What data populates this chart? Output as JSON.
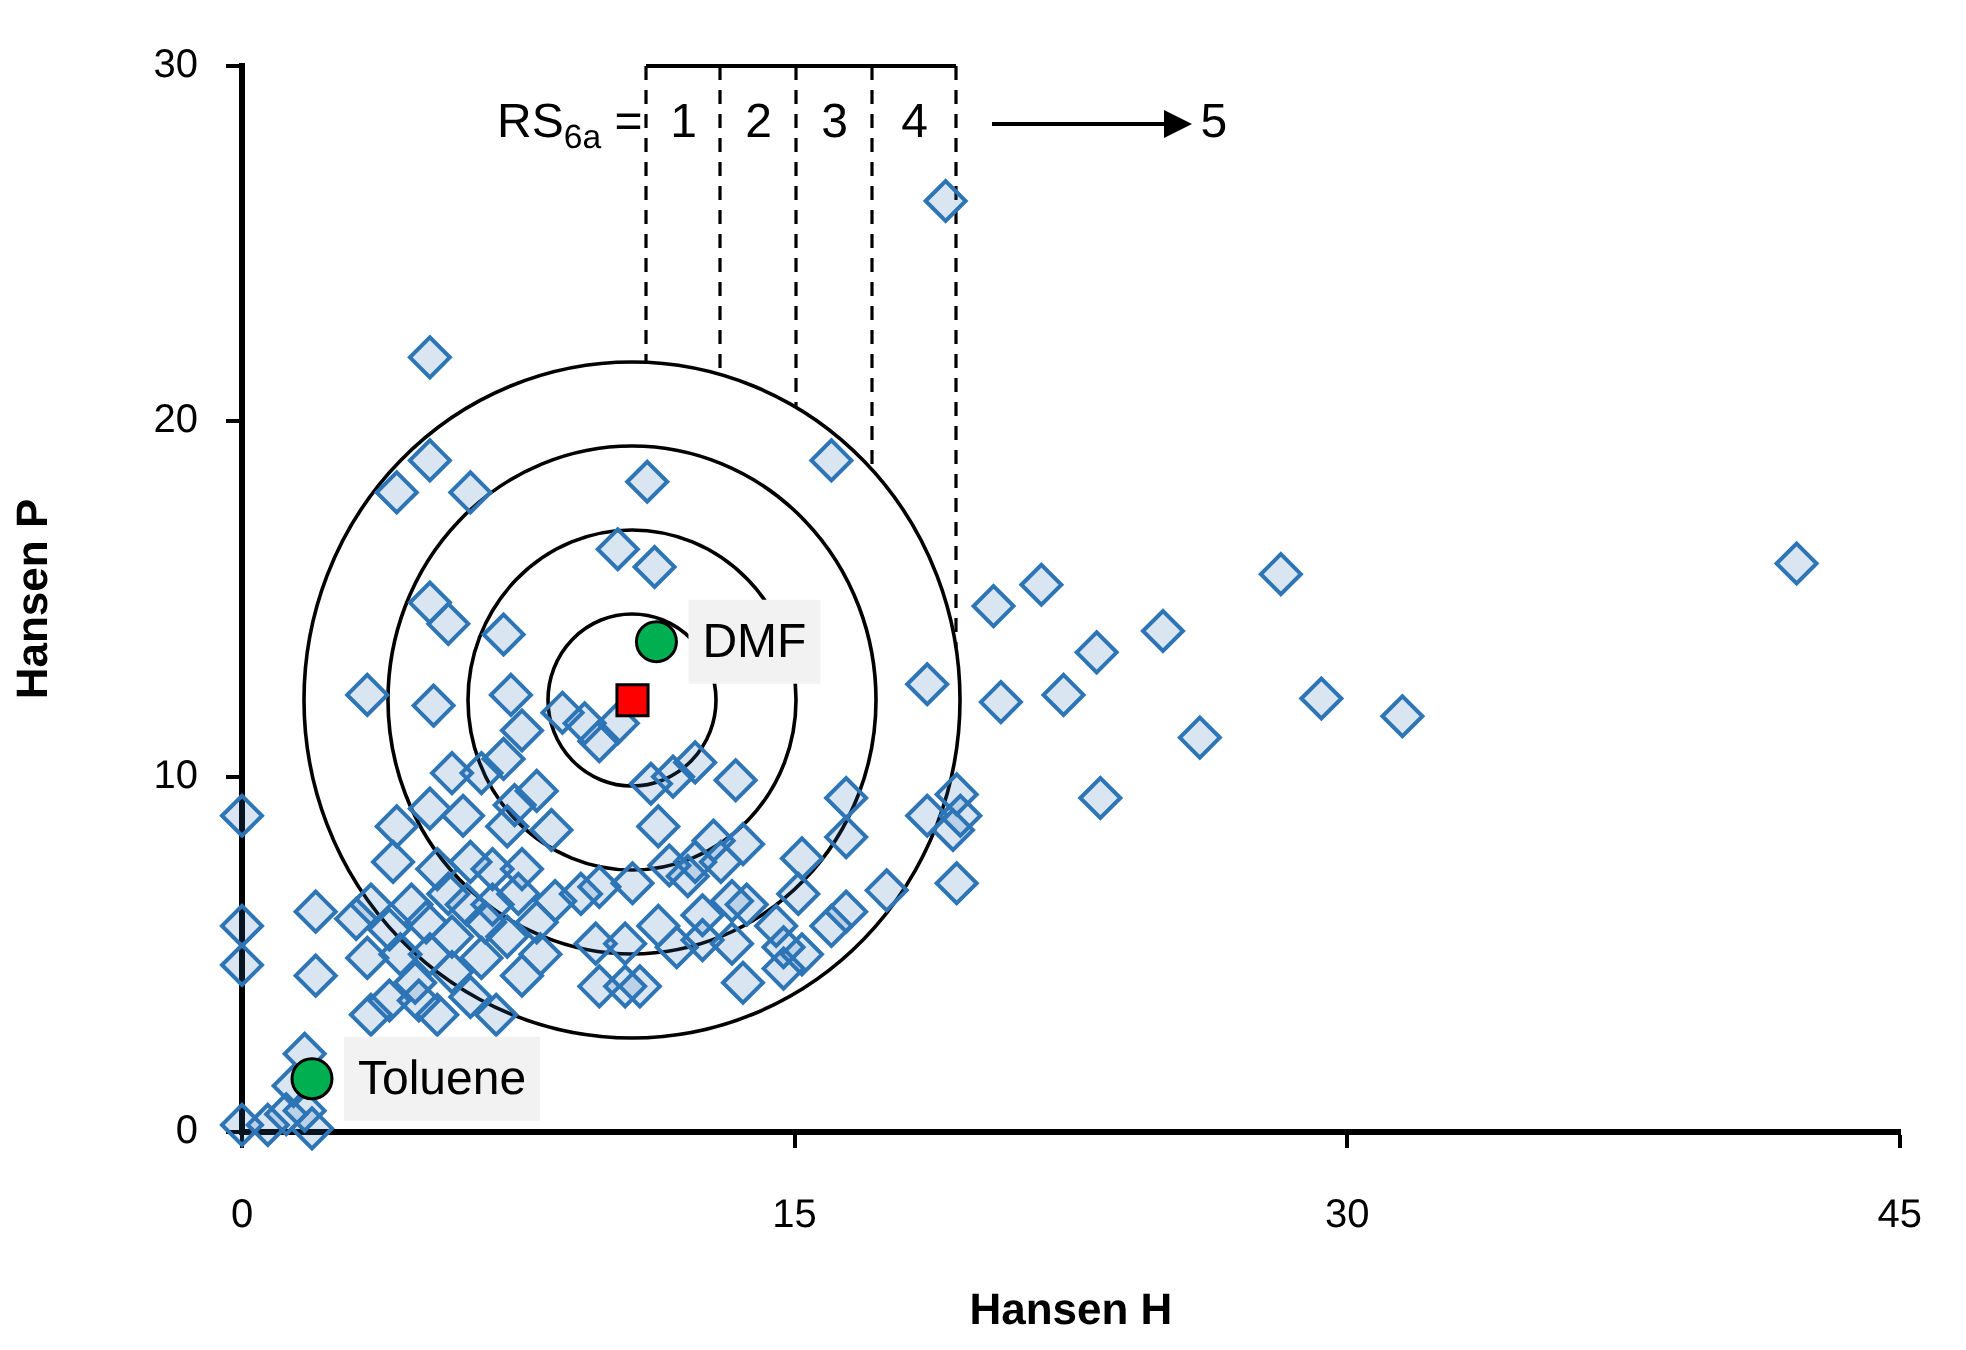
{
  "chart_data": {
    "type": "scatter",
    "xlabel": "Hansen H",
    "ylabel": "Hansen P",
    "xlim": [
      0,
      45
    ],
    "ylim": [
      0,
      30
    ],
    "xticks": [
      0,
      15,
      30,
      45
    ],
    "yticks": [
      0,
      10,
      20,
      30
    ],
    "legend": false,
    "series": [
      {
        "marker": "diamond",
        "color": "#2e75b6",
        "x": [
          20.4,
          21.7,
          23.2,
          25.0,
          20.6,
          22.3,
          28.2,
          29.3,
          31.5,
          42.2,
          26.0,
          23.3,
          19.4,
          19.5,
          19.3,
          19.4,
          19.1,
          18.6,
          9.3,
          9.7,
          10.2,
          11.1,
          11.7,
          12.3,
          13.4,
          11.3,
          12.8,
          13.6,
          11.6,
          12.3,
          13.0,
          12.1,
          16.4,
          16.4,
          15.2,
          15.1,
          17.5,
          18.6,
          9.7,
          10.6,
          9.2,
          11.3,
          12.5,
          13.3,
          13.7,
          14.5,
          9.6,
          10.4,
          11.8,
          12.5,
          13.3,
          14.7,
          16.0,
          16.4,
          9.7,
          10.4,
          10.8,
          13.6,
          14.7,
          15.2,
          11.0,
          16.0,
          10.2,
          11.2,
          5.1,
          5.1,
          4.2,
          6.2,
          5.1,
          5.6,
          7.1,
          3.4,
          5.2,
          7.3,
          7.6,
          8.7,
          5.7,
          6.5,
          7.1,
          8.0,
          5.1,
          6.0,
          4.2,
          7.2,
          8.4,
          0,
          0,
          0,
          2.0,
          2.0,
          1.7,
          0,
          0.7,
          1.2,
          1.9,
          1.4,
          7.4,
          4.1,
          5.3,
          6.2,
          6.8,
          7.6,
          3.5,
          4.6,
          5.6,
          6.1,
          6.8,
          7.5,
          8.5,
          3.1,
          4.0,
          5.0,
          5.7,
          6.6,
          7.2,
          8.0,
          3.4,
          4.3,
          5.1,
          5.7,
          6.5,
          7.6,
          8.1,
          4.7,
          4.0,
          4.8,
          6.2,
          5.3,
          6.9,
          3.5,
          1.7
        ],
        "values": [
          14.8,
          15.4,
          13.5,
          14.1,
          12.1,
          12.3,
          15.7,
          12.2,
          11.7,
          16.0,
          11.1,
          9.4,
          9.5,
          8.9,
          8.5,
          7.0,
          26.2,
          12.6,
          11.5,
          11.0,
          11.5,
          9.8,
          10.0,
          10.4,
          9.9,
          8.6,
          8.2,
          8.1,
          7.5,
          7.6,
          7.6,
          7.2,
          9.4,
          8.3,
          7.7,
          6.7,
          6.8,
          8.9,
          6.9,
          7.0,
          6.7,
          5.8,
          6.1,
          6.5,
          6.4,
          5.8,
          5.3,
          5.3,
          5.2,
          5.4,
          5.3,
          5.2,
          5.8,
          6.2,
          4.1,
          4.1,
          4.1,
          4.2,
          4.6,
          5.0,
          18.3,
          18.9,
          16.4,
          15.9,
          21.8,
          18.9,
          18.0,
          18.0,
          14.9,
          14.3,
          14.0,
          12.3,
          12.0,
          12.3,
          11.3,
          11.8,
          10.1,
          10.1,
          10.5,
          9.6,
          9.1,
          8.9,
          8.6,
          8.6,
          8.5,
          8.9,
          5.8,
          4.7,
          6.2,
          4.4,
          2.2,
          0.2,
          0.2,
          0.5,
          0.1,
          1.3,
          9.2,
          7.6,
          7.4,
          7.6,
          7.4,
          7.4,
          6.4,
          6.4,
          6.7,
          6.4,
          6.4,
          6.7,
          6.5,
          6.0,
          5.7,
          5.9,
          5.5,
          5.9,
          5.5,
          5.9,
          4.9,
          5.0,
          5.0,
          4.5,
          4.9,
          4.4,
          5.0,
          4.2,
          3.7,
          3.7,
          3.8,
          3.3,
          3.3,
          3.3,
          0.6
        ]
      },
      {
        "marker": "circle",
        "color": "#00b050",
        "x": [
          11.25,
          1.9
        ],
        "values": [
          13.8,
          1.5
        ]
      },
      {
        "marker": "square",
        "color": "#ff0000",
        "x": [
          10.6
        ],
        "values": [
          12.15
        ]
      }
    ],
    "annotations": [
      {
        "text": "DMF",
        "x": 11.25,
        "y": 13.8
      },
      {
        "text": "Toluene",
        "x": 1.9,
        "y": 1.5
      },
      "RS$_{6a}$ =",
      "1",
      "2",
      "3",
      "4",
      "5"
    ]
  }
}
